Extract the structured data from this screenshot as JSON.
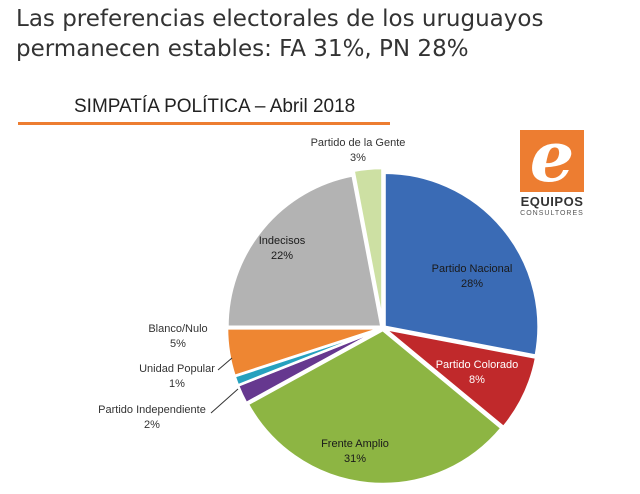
{
  "headline": {
    "line1": "Las preferencias electorales de los uruguayos",
    "line2": "permanecen estables: FA 31%, PN 28%"
  },
  "logo": {
    "mark": "e",
    "word": "EQUIPOS",
    "sub": "CONSULTORES"
  },
  "colors": {
    "accent": "#ED7D31"
  },
  "chart_data": {
    "type": "pie",
    "title": "SIMPATÍA POLÍTICA – Abril 2018",
    "slices": [
      {
        "name": "Partido Nacional",
        "pct_label": "28%",
        "value": 28,
        "color": "#3A6BB5"
      },
      {
        "name": "Partido Colorado",
        "pct_label": "8%",
        "value": 8,
        "color": "#C0292B"
      },
      {
        "name": "Frente Amplio",
        "pct_label": "31%",
        "value": 31,
        "color": "#8DB543"
      },
      {
        "name": "Partido Independiente",
        "pct_label": "2%",
        "value": 2,
        "color": "#66388F"
      },
      {
        "name": "Unidad Popular",
        "pct_label": "1%",
        "value": 1,
        "color": "#26A1BE"
      },
      {
        "name": "Blanco/Nulo",
        "pct_label": "5%",
        "value": 5,
        "color": "#EE8632"
      },
      {
        "name": "Indecisos",
        "pct_label": "22%",
        "value": 22,
        "color": "#B3B3B3"
      },
      {
        "name": "Partido de la Gente",
        "pct_label": "3%",
        "value": 3,
        "color": "#CDE0A3"
      }
    ]
  }
}
